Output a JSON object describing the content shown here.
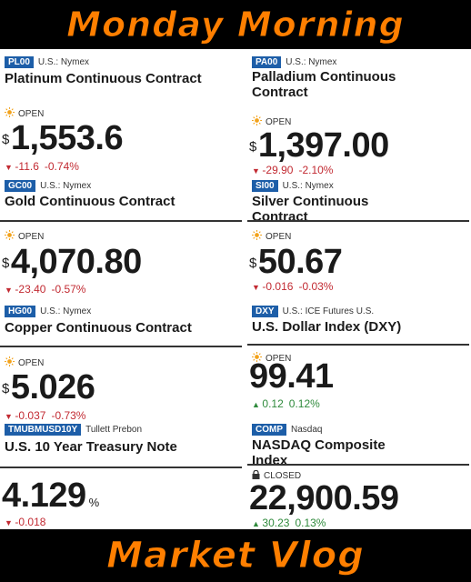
{
  "header": {
    "title": "Monday Morning"
  },
  "footer": {
    "title": "Market Vlog"
  },
  "columns": [
    {
      "cards": [
        {
          "symbol": "PL00",
          "exchange": "U.S.: Nymex",
          "name": "Platinum Continuous Contract",
          "status": "OPEN",
          "currency": "$",
          "price": "1,553.6",
          "change": "-11.6",
          "change_pct": "-0.74%",
          "direction": "down"
        },
        {
          "symbol": "GC00",
          "exchange": "U.S.: Nymex",
          "name": "Gold Continuous Contract",
          "status": "OPEN",
          "currency": "$",
          "price": "4,070.80",
          "change": "-23.40",
          "change_pct": "-0.57%",
          "direction": "down"
        },
        {
          "symbol": "HG00",
          "exchange": "U.S.: Nymex",
          "name": "Copper Continuous Contract",
          "status": "OPEN",
          "currency": "$",
          "price": "5.026",
          "change": "-0.037",
          "change_pct": "-0.73%",
          "direction": "down"
        },
        {
          "symbol": "TMUBMUSD10Y",
          "exchange": "Tullett Prebon",
          "name": "U.S. 10 Year Treasury Note",
          "price": "4.129",
          "unit": "%",
          "change": "-0.018",
          "direction": "down"
        }
      ]
    },
    {
      "cards": [
        {
          "symbol": "PA00",
          "exchange": "U.S.: Nymex",
          "name": "Palladium Continuous Contract",
          "status": "OPEN",
          "currency": "$",
          "price": "1,397.00",
          "change": "-29.90",
          "change_pct": "-2.10%",
          "direction": "down"
        },
        {
          "symbol": "SI00",
          "exchange": "U.S.: Nymex",
          "name": "Silver Continuous Contract",
          "status": "OPEN",
          "currency": "$",
          "price": "50.67",
          "change": "-0.016",
          "change_pct": "-0.03%",
          "direction": "down"
        },
        {
          "symbol": "DXY",
          "exchange": "U.S.: ICE Futures U.S.",
          "name": "U.S. Dollar Index (DXY)",
          "status": "OPEN",
          "price": "99.41",
          "change": "0.12",
          "change_pct": "0.12%",
          "direction": "up"
        },
        {
          "symbol": "COMP",
          "exchange": "Nasdaq",
          "name": "NASDAQ Composite Index",
          "status": "CLOSED",
          "price": "22,900.59",
          "change": "30.23",
          "change_pct": "0.13%",
          "direction": "up"
        }
      ]
    }
  ]
}
